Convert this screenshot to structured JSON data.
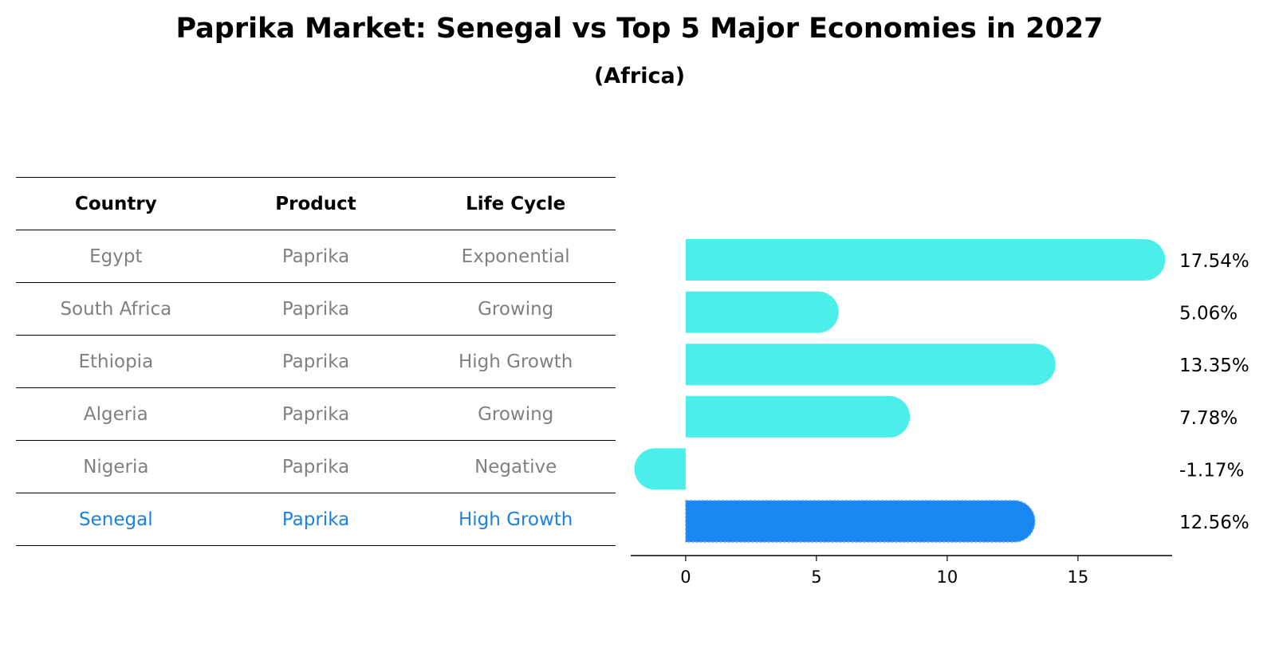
{
  "chart_data": {
    "type": "bar",
    "orientation": "horizontal",
    "title": "Paprika Market: Senegal vs Top 5 Major Economies in 2027",
    "subtitle": "(Africa)",
    "categories": [
      "Egypt",
      "South Africa",
      "Ethiopia",
      "Algeria",
      "Nigeria",
      "Senegal"
    ],
    "values": [
      17.54,
      5.06,
      13.35,
      7.78,
      -1.17,
      12.56
    ],
    "value_labels": [
      "17.54%",
      "5.06%",
      "13.35%",
      "7.78%",
      "-1.17%",
      "12.56%"
    ],
    "highlight": "Senegal",
    "xlim": [
      -2.1,
      18.6
    ],
    "xticks": [
      0,
      5,
      10,
      15
    ],
    "xlabel": "",
    "ylabel": "",
    "colors": {
      "default": "#4ceeea",
      "highlight": "#1a86f2"
    }
  },
  "table": {
    "headers": [
      "Country",
      "Product",
      "Life Cycle"
    ],
    "rows": [
      {
        "country": "Egypt",
        "product": "Paprika",
        "life_cycle": "Exponential"
      },
      {
        "country": "South Africa",
        "product": "Paprika",
        "life_cycle": "Growing"
      },
      {
        "country": "Ethiopia",
        "product": "Paprika",
        "life_cycle": "High Growth"
      },
      {
        "country": "Algeria",
        "product": "Paprika",
        "life_cycle": "Growing"
      },
      {
        "country": "Nigeria",
        "product": "Paprika",
        "life_cycle": "Negative"
      },
      {
        "country": "Senegal",
        "product": "Paprika",
        "life_cycle": "High Growth"
      }
    ]
  }
}
